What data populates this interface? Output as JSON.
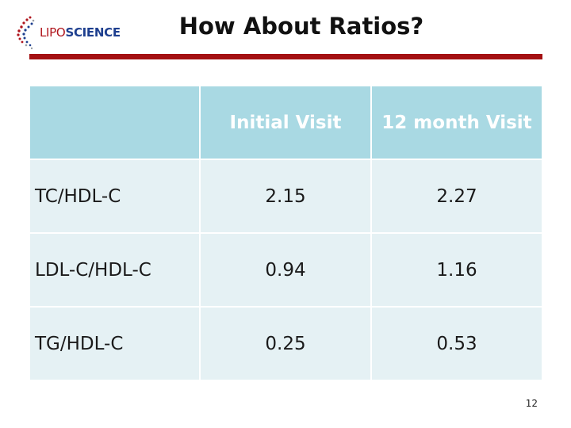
{
  "header": {
    "logo": {
      "text_part1": "LIPO",
      "text_part2": "SCIENCE",
      "icon": "dna-helix-icon"
    },
    "title": "How About Ratios?"
  },
  "table": {
    "columns": [
      "",
      "Initial Visit",
      "12 month Visit"
    ],
    "rows": [
      {
        "label": "TC/HDL-C",
        "values": [
          "2.15",
          "2.27"
        ]
      },
      {
        "label": "LDL-C/HDL-C",
        "values": [
          "0.94",
          "1.16"
        ]
      },
      {
        "label": "TG/HDL-C",
        "values": [
          "0.25",
          "0.53"
        ]
      }
    ]
  },
  "footer": {
    "page_number": "12"
  },
  "colors": {
    "accent_rule": "#a41113",
    "header_fill": "#a9d9e3",
    "row_fill": "#e5f1f4",
    "logo_red": "#b0151d",
    "logo_blue": "#1e3f8f"
  }
}
